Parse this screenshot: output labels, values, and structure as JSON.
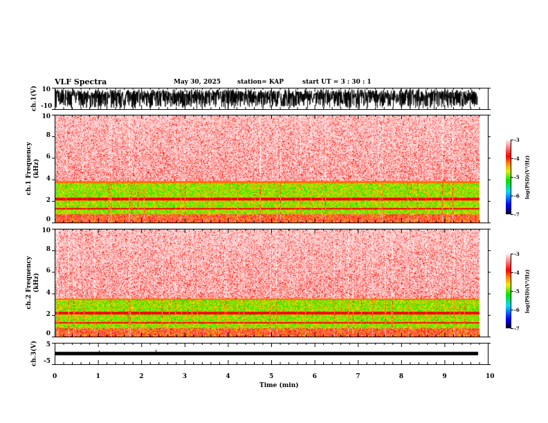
{
  "header": {
    "title": "VLF Spectra",
    "date": "May 30, 2025",
    "station": "station= KAP",
    "start": "start  UT =   3 : 30 : 1"
  },
  "xlabel": "Time  (min)",
  "chart_data": [
    {
      "type": "line",
      "name": "ch1-waveform",
      "ylabel": "ch.1(V)",
      "ylim": [
        -10,
        10
      ],
      "yticks": [
        "10",
        "-10"
      ],
      "xlim": [
        0,
        10
      ],
      "description_values": "noisy waveform filling roughly -8 to 10 V"
    },
    {
      "type": "heatmap",
      "name": "ch1-spectrogram",
      "ylabel": "ch.1 Frequency  (kHz)",
      "ylim": [
        0,
        10
      ],
      "yticks": [
        "0",
        "2",
        "4",
        "6",
        "8",
        "10"
      ],
      "xlim": [
        0,
        9.8
      ],
      "colorbar": {
        "label": "log(PSD)(V²/Hz)",
        "range": [
          -7,
          -3
        ],
        "ticks": [
          "-3",
          "-4",
          "-5",
          "-6",
          "-7"
        ]
      },
      "bands_kHz": [
        {
          "range": [
            0.8,
            3.7
          ],
          "level": -4.8
        },
        {
          "range": [
            3.7,
            10
          ],
          "level": -3.8
        }
      ]
    },
    {
      "type": "heatmap",
      "name": "ch2-spectrogram",
      "ylabel": "ch.2 Frequency  (kHz)",
      "ylim": [
        0,
        10
      ],
      "yticks": [
        "0",
        "2",
        "4",
        "6",
        "8",
        "10"
      ],
      "xlim": [
        0,
        9.8
      ],
      "colorbar": {
        "label": "log(PSD)(V²/Hz)",
        "range": [
          -7,
          -3
        ],
        "ticks": [
          "-3",
          "-4",
          "-5",
          "-6",
          "-7"
        ]
      },
      "bands_kHz": [
        {
          "range": [
            0.8,
            3.4
          ],
          "level": -5.0
        },
        {
          "range": [
            3.4,
            10
          ],
          "level": -3.8
        }
      ]
    },
    {
      "type": "line",
      "name": "ch3-waveform",
      "ylabel": "ch.3(V)",
      "ylim": [
        -5,
        5
      ],
      "yticks": [
        "5",
        "-5"
      ],
      "xlim": [
        0,
        10
      ],
      "description_values": "nearly constant around 0 V (thin band approx -0.2 to 0.4)"
    }
  ],
  "xticks": [
    "0",
    "1",
    "2",
    "3",
    "4",
    "5",
    "6",
    "7",
    "8",
    "9",
    "10"
  ]
}
